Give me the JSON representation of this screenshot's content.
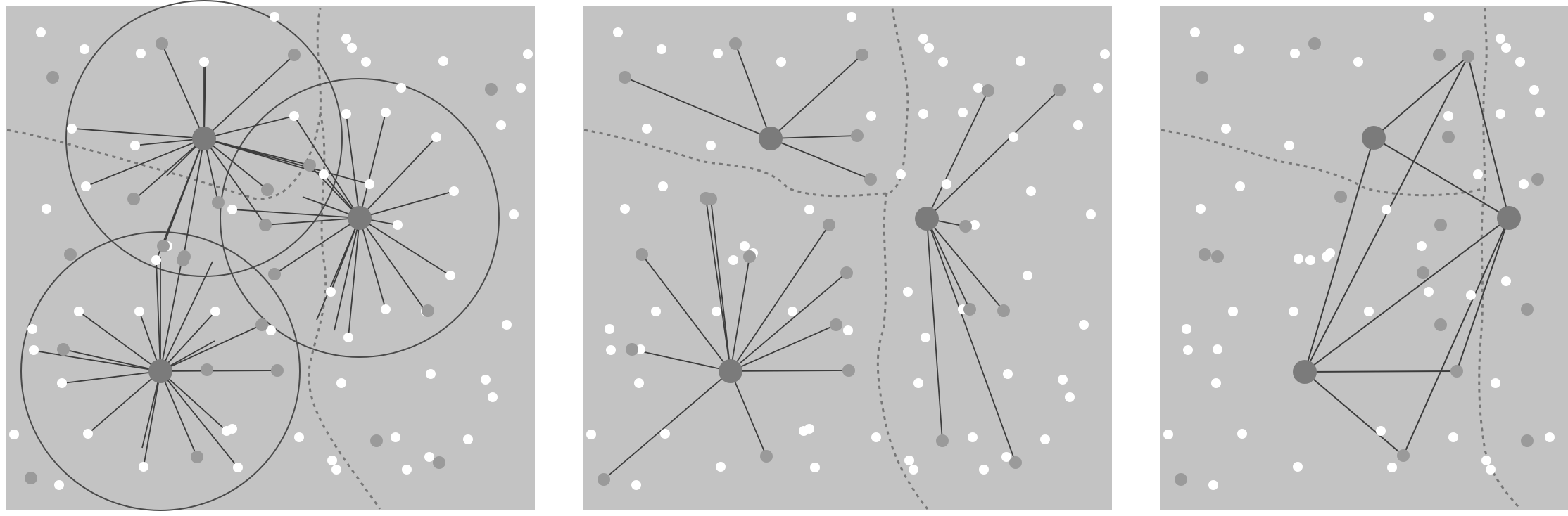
{
  "figure": {
    "panels": [
      {
        "id": "coverage",
        "description_visible": false
      },
      {
        "id": "selected-links",
        "description_visible": false
      },
      {
        "id": "hub-graph",
        "description_visible": false
      }
    ]
  },
  "colors": {
    "background": "#c3c3c3",
    "page": "#ffffff",
    "white_node": "#ffffff",
    "gray_node": "#9a9a9a",
    "hub_node": "#7b7b7b",
    "edge": "#3c3c3c",
    "boundary": "#777777"
  }
}
